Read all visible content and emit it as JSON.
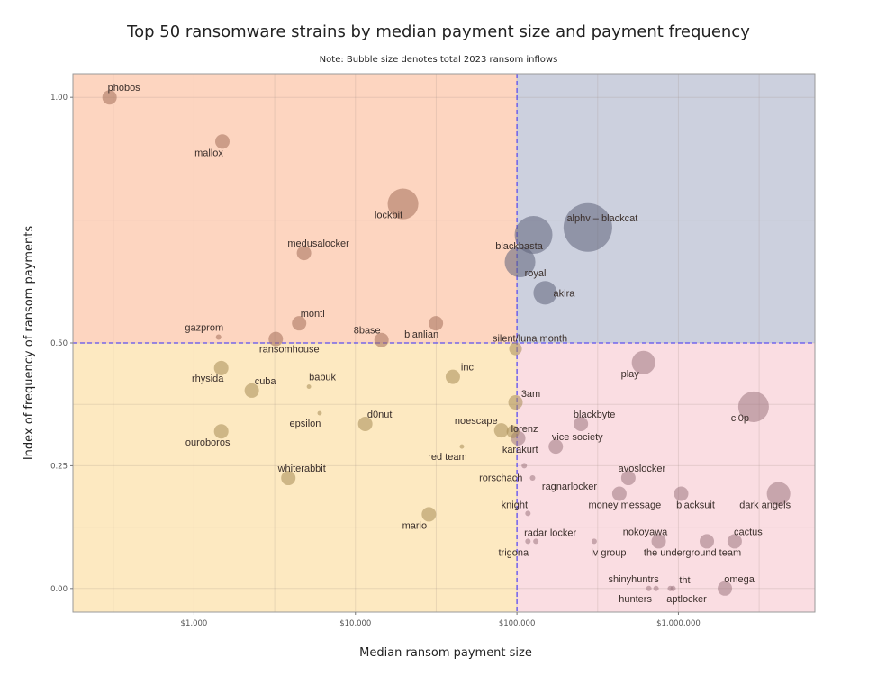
{
  "chart_data": {
    "type": "scatter",
    "title": "Top 50 ransomware strains by median payment size and payment frequency",
    "subtitle": "Note: Bubble size denotes total 2023 ransom inflows",
    "xlabel": "Median ransom payment size",
    "ylabel": "Index of frequency of ransom payments",
    "x_scale": "log",
    "xlim": [
      178,
      7000000
    ],
    "ylim": [
      -0.048,
      1.048
    ],
    "x_ticks": [
      {
        "value": 1000,
        "label": "$1,000"
      },
      {
        "value": 10000,
        "label": "$10,000"
      },
      {
        "value": 100000,
        "label": "$100,000"
      },
      {
        "value": 1000000,
        "label": "$1,000,000"
      }
    ],
    "y_ticks": [
      {
        "value": 0,
        "label": "0.00"
      },
      {
        "value": 0.25,
        "label": "0.25"
      },
      {
        "value": 0.5,
        "label": "0.50"
      },
      {
        "value": 1.0,
        "label": "1.00"
      }
    ],
    "grid": true,
    "reference_lines": {
      "x": 100000,
      "y": 0.5,
      "color": "#5b4ff0",
      "style": "dashed"
    },
    "quadrant_colors": {
      "top_left": "#fdd5c0",
      "top_right": "#ccd0de",
      "bottom_left": "#fde9c1",
      "bottom_right": "#fadde2"
    },
    "bubble_colors": {
      "top_left": "#a4705a",
      "top_right": "#5f637a",
      "bottom_left": "#a88d55",
      "bottom_right": "#9c7680"
    },
    "points": [
      {
        "name": "phobos",
        "x": 300,
        "y": 1.0,
        "size": 6.4
      },
      {
        "name": "mallox",
        "x": 1500,
        "y": 0.91,
        "size": 6.4
      },
      {
        "name": "medusalocker",
        "x": 4800,
        "y": 0.683,
        "size": 6.4
      },
      {
        "name": "monti",
        "x": 4480,
        "y": 0.54,
        "size": 6.4
      },
      {
        "name": "gazprom",
        "x": 1420,
        "y": 0.512,
        "size": 0.9
      },
      {
        "name": "ransomhouse",
        "x": 3210,
        "y": 0.508,
        "size": 6.4
      },
      {
        "name": "8base",
        "x": 14500,
        "y": 0.506,
        "size": 6.4
      },
      {
        "name": "bianlian",
        "x": 31500,
        "y": 0.54,
        "size": 6.4
      },
      {
        "name": "lockbit",
        "x": 19700,
        "y": 0.783,
        "size": 29
      },
      {
        "name": "blackbasta",
        "x": 126700,
        "y": 0.72,
        "size": 44
      },
      {
        "name": "royal",
        "x": 104500,
        "y": 0.665,
        "size": 29
      },
      {
        "name": "alphv – blackcat",
        "x": 275000,
        "y": 0.735,
        "size": 73
      },
      {
        "name": "akira",
        "x": 149600,
        "y": 0.602,
        "size": 17
      },
      {
        "name": "silent/luna month",
        "x": 98000,
        "y": 0.488,
        "size": 5
      },
      {
        "name": "rhysida",
        "x": 1475,
        "y": 0.449,
        "size": 6.4
      },
      {
        "name": "cuba",
        "x": 2280,
        "y": 0.403,
        "size": 6.4
      },
      {
        "name": "babuk",
        "x": 5150,
        "y": 0.411,
        "size": 0.6
      },
      {
        "name": "epsilon",
        "x": 6000,
        "y": 0.357,
        "size": 0.6
      },
      {
        "name": "ouroboros",
        "x": 1475,
        "y": 0.32,
        "size": 6.4
      },
      {
        "name": "d0nut",
        "x": 11500,
        "y": 0.335,
        "size": 6.4
      },
      {
        "name": "whiterabbit",
        "x": 3840,
        "y": 0.225,
        "size": 6.4
      },
      {
        "name": "inc",
        "x": 40100,
        "y": 0.431,
        "size": 6.4
      },
      {
        "name": "noescape",
        "x": 80000,
        "y": 0.322,
        "size": 6.4
      },
      {
        "name": "karakurt",
        "x": 94500,
        "y": 0.319,
        "size": 5
      },
      {
        "name": "red team",
        "x": 45600,
        "y": 0.289,
        "size": 0.6
      },
      {
        "name": "mario",
        "x": 28500,
        "y": 0.151,
        "size": 6.4
      },
      {
        "name": "3am",
        "x": 98000,
        "y": 0.379,
        "size": 6.4
      },
      {
        "name": "lorenz",
        "x": 101900,
        "y": 0.306,
        "size": 6.4
      },
      {
        "name": "blackbyte",
        "x": 249000,
        "y": 0.335,
        "size": 6.4
      },
      {
        "name": "vice society",
        "x": 174000,
        "y": 0.289,
        "size": 6.4
      },
      {
        "name": "play",
        "x": 608000,
        "y": 0.46,
        "size": 17
      },
      {
        "name": "cl0p",
        "x": 2920000,
        "y": 0.37,
        "size": 29
      },
      {
        "name": "rorschach",
        "x": 111000,
        "y": 0.25,
        "size": 0.9
      },
      {
        "name": "ragnarlocker",
        "x": 125000,
        "y": 0.225,
        "size": 0.9
      },
      {
        "name": "knight",
        "x": 117000,
        "y": 0.153,
        "size": 0.9
      },
      {
        "name": "radar locker",
        "x": 131000,
        "y": 0.096,
        "size": 0.9
      },
      {
        "name": "trigona",
        "x": 117000,
        "y": 0.096,
        "size": 0.9
      },
      {
        "name": "lv group",
        "x": 301000,
        "y": 0.096,
        "size": 0.9
      },
      {
        "name": "avoslocker",
        "x": 490000,
        "y": 0.225,
        "size": 6.4
      },
      {
        "name": "money message",
        "x": 431000,
        "y": 0.193,
        "size": 6.4
      },
      {
        "name": "blacksuit",
        "x": 1040000,
        "y": 0.193,
        "size": 6.4
      },
      {
        "name": "dark angels",
        "x": 4170000,
        "y": 0.193,
        "size": 17
      },
      {
        "name": "nokoyawa",
        "x": 755000,
        "y": 0.096,
        "size": 6.4
      },
      {
        "name": "the underground team",
        "x": 1500000,
        "y": 0.096,
        "size": 6.4
      },
      {
        "name": "cactus",
        "x": 2230000,
        "y": 0.096,
        "size": 6.4
      },
      {
        "name": "shinyhuntrs",
        "x": 656000,
        "y": 0.0,
        "size": 0.9
      },
      {
        "name": "hunters",
        "x": 727000,
        "y": 0.0,
        "size": 0.9
      },
      {
        "name": "tht",
        "x": 891000,
        "y": 0.0,
        "size": 0.9
      },
      {
        "name": "aptlocker",
        "x": 927000,
        "y": 0.0,
        "size": 0.9
      },
      {
        "name": "omega",
        "x": 1940000,
        "y": 0.0,
        "size": 6.4
      }
    ]
  }
}
